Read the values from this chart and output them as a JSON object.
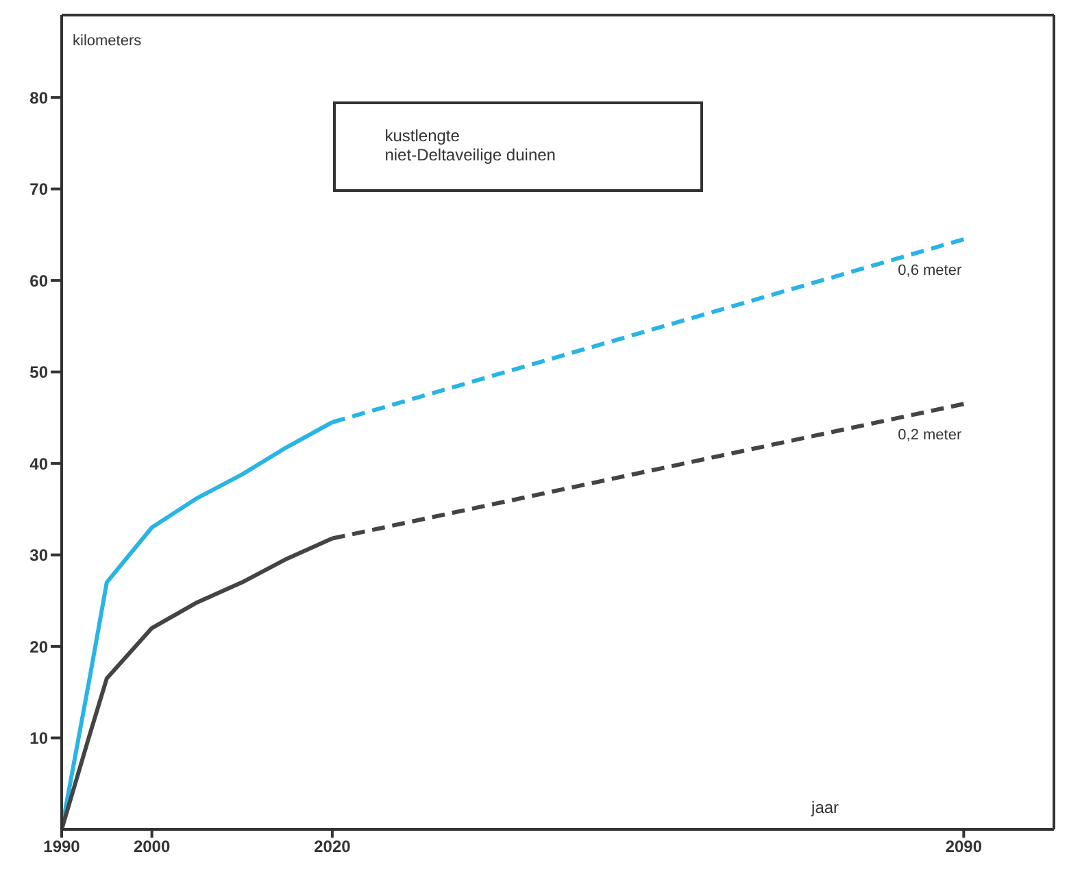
{
  "chart_data": {
    "type": "line",
    "title": "kustlengte\nniet-Deltaveilige duinen",
    "xlabel": "jaar",
    "ylabel": "kilometers",
    "series": [
      {
        "color": "#29b4e6",
        "line_style": "solid",
        "x": [
          1990,
          1993,
          1995,
          2000,
          2005,
          2010,
          2015,
          2020
        ],
        "values": [
          0,
          16,
          27,
          33,
          36.2,
          38.8,
          41.8,
          44.5
        ]
      },
      {
        "name": "0,6 meter",
        "color": "#29b4e6",
        "line_style": "dashed",
        "x": [
          2020,
          2090
        ],
        "values": [
          44.5,
          64.5
        ]
      },
      {
        "color": "#444444",
        "line_style": "solid",
        "x": [
          1990,
          1993,
          1995,
          2000,
          2005,
          2010,
          2015,
          2020
        ],
        "values": [
          0,
          10,
          16.5,
          22,
          24.8,
          27,
          29.6,
          31.8
        ]
      },
      {
        "name": "0,2 meter",
        "color": "#444444",
        "line_style": "dashed",
        "x": [
          2020,
          2090
        ],
        "values": [
          31.8,
          46.5
        ]
      }
    ],
    "xlim": [
      1990,
      2100
    ],
    "xticks": [
      1990,
      2000,
      2020,
      2090
    ],
    "ylim": [
      0,
      89
    ],
    "yticks": [
      10,
      20,
      30,
      40,
      50,
      60,
      70,
      80
    ],
    "legend": false,
    "marker": "none"
  }
}
